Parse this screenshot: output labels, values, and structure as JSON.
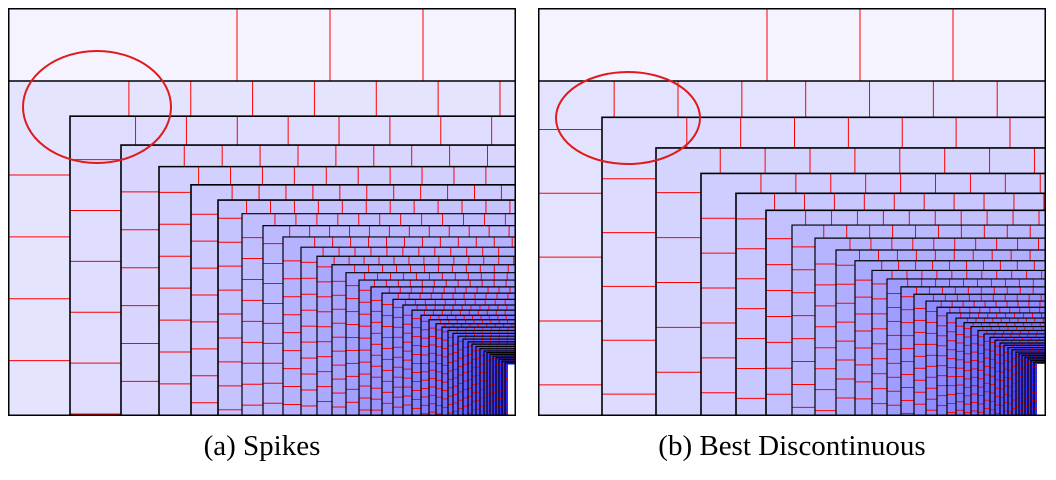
{
  "panels": [
    {
      "caption": "(a) Spikes",
      "edges": [
        0,
        62,
        113,
        151,
        183,
        210,
        234,
        255,
        275,
        293,
        309,
        324,
        338,
        351,
        363,
        374,
        385,
        395,
        404,
        413,
        421,
        428,
        434,
        440,
        445,
        450,
        455,
        460,
        464,
        468,
        472,
        476,
        479,
        482,
        485,
        488,
        491,
        494,
        497,
        500
      ],
      "stagger": [
        1,
        0.3,
        0.7,
        0.25,
        0.55,
        0.2,
        0.6,
        0.35,
        0.8,
        0.4,
        0.15,
        0.65,
        0.45,
        0.3,
        0.7,
        0.5,
        0.25,
        0.6,
        0.4,
        0.2,
        0.55,
        0.35,
        0.15,
        0.5
      ],
      "highlight": {
        "cx": 89,
        "cy": 99,
        "rx": 74,
        "ry": 56
      }
    },
    {
      "caption": "(b) Best Discontinuous",
      "edges": [
        0,
        64,
        118,
        163,
        198,
        228,
        254,
        277,
        298,
        317,
        334,
        349,
        363,
        376,
        388,
        399,
        409,
        418,
        426,
        433,
        440,
        446,
        452,
        457,
        462,
        466,
        470,
        474,
        478,
        481,
        484,
        487,
        490,
        493,
        496,
        499
      ],
      "stagger": [
        0.2,
        0.6,
        0.45,
        0.75,
        0.3,
        0.55,
        0.4,
        0.7,
        0.25,
        0.6,
        0.35,
        0.5,
        0.2,
        0.65,
        0.4,
        0.3,
        0.55,
        0.45,
        0.25,
        0.6,
        0.35,
        0.5,
        0.3,
        0.4
      ],
      "highlight": {
        "cx": 90,
        "cy": 110,
        "rx": 72,
        "ry": 46
      }
    }
  ],
  "colors": {
    "boundary": "#000000",
    "subcell_line": "#ff0000",
    "highlight": "#e01b1b",
    "shade_light": "#f8f7ff",
    "shade_dark": "#2a26ff"
  }
}
